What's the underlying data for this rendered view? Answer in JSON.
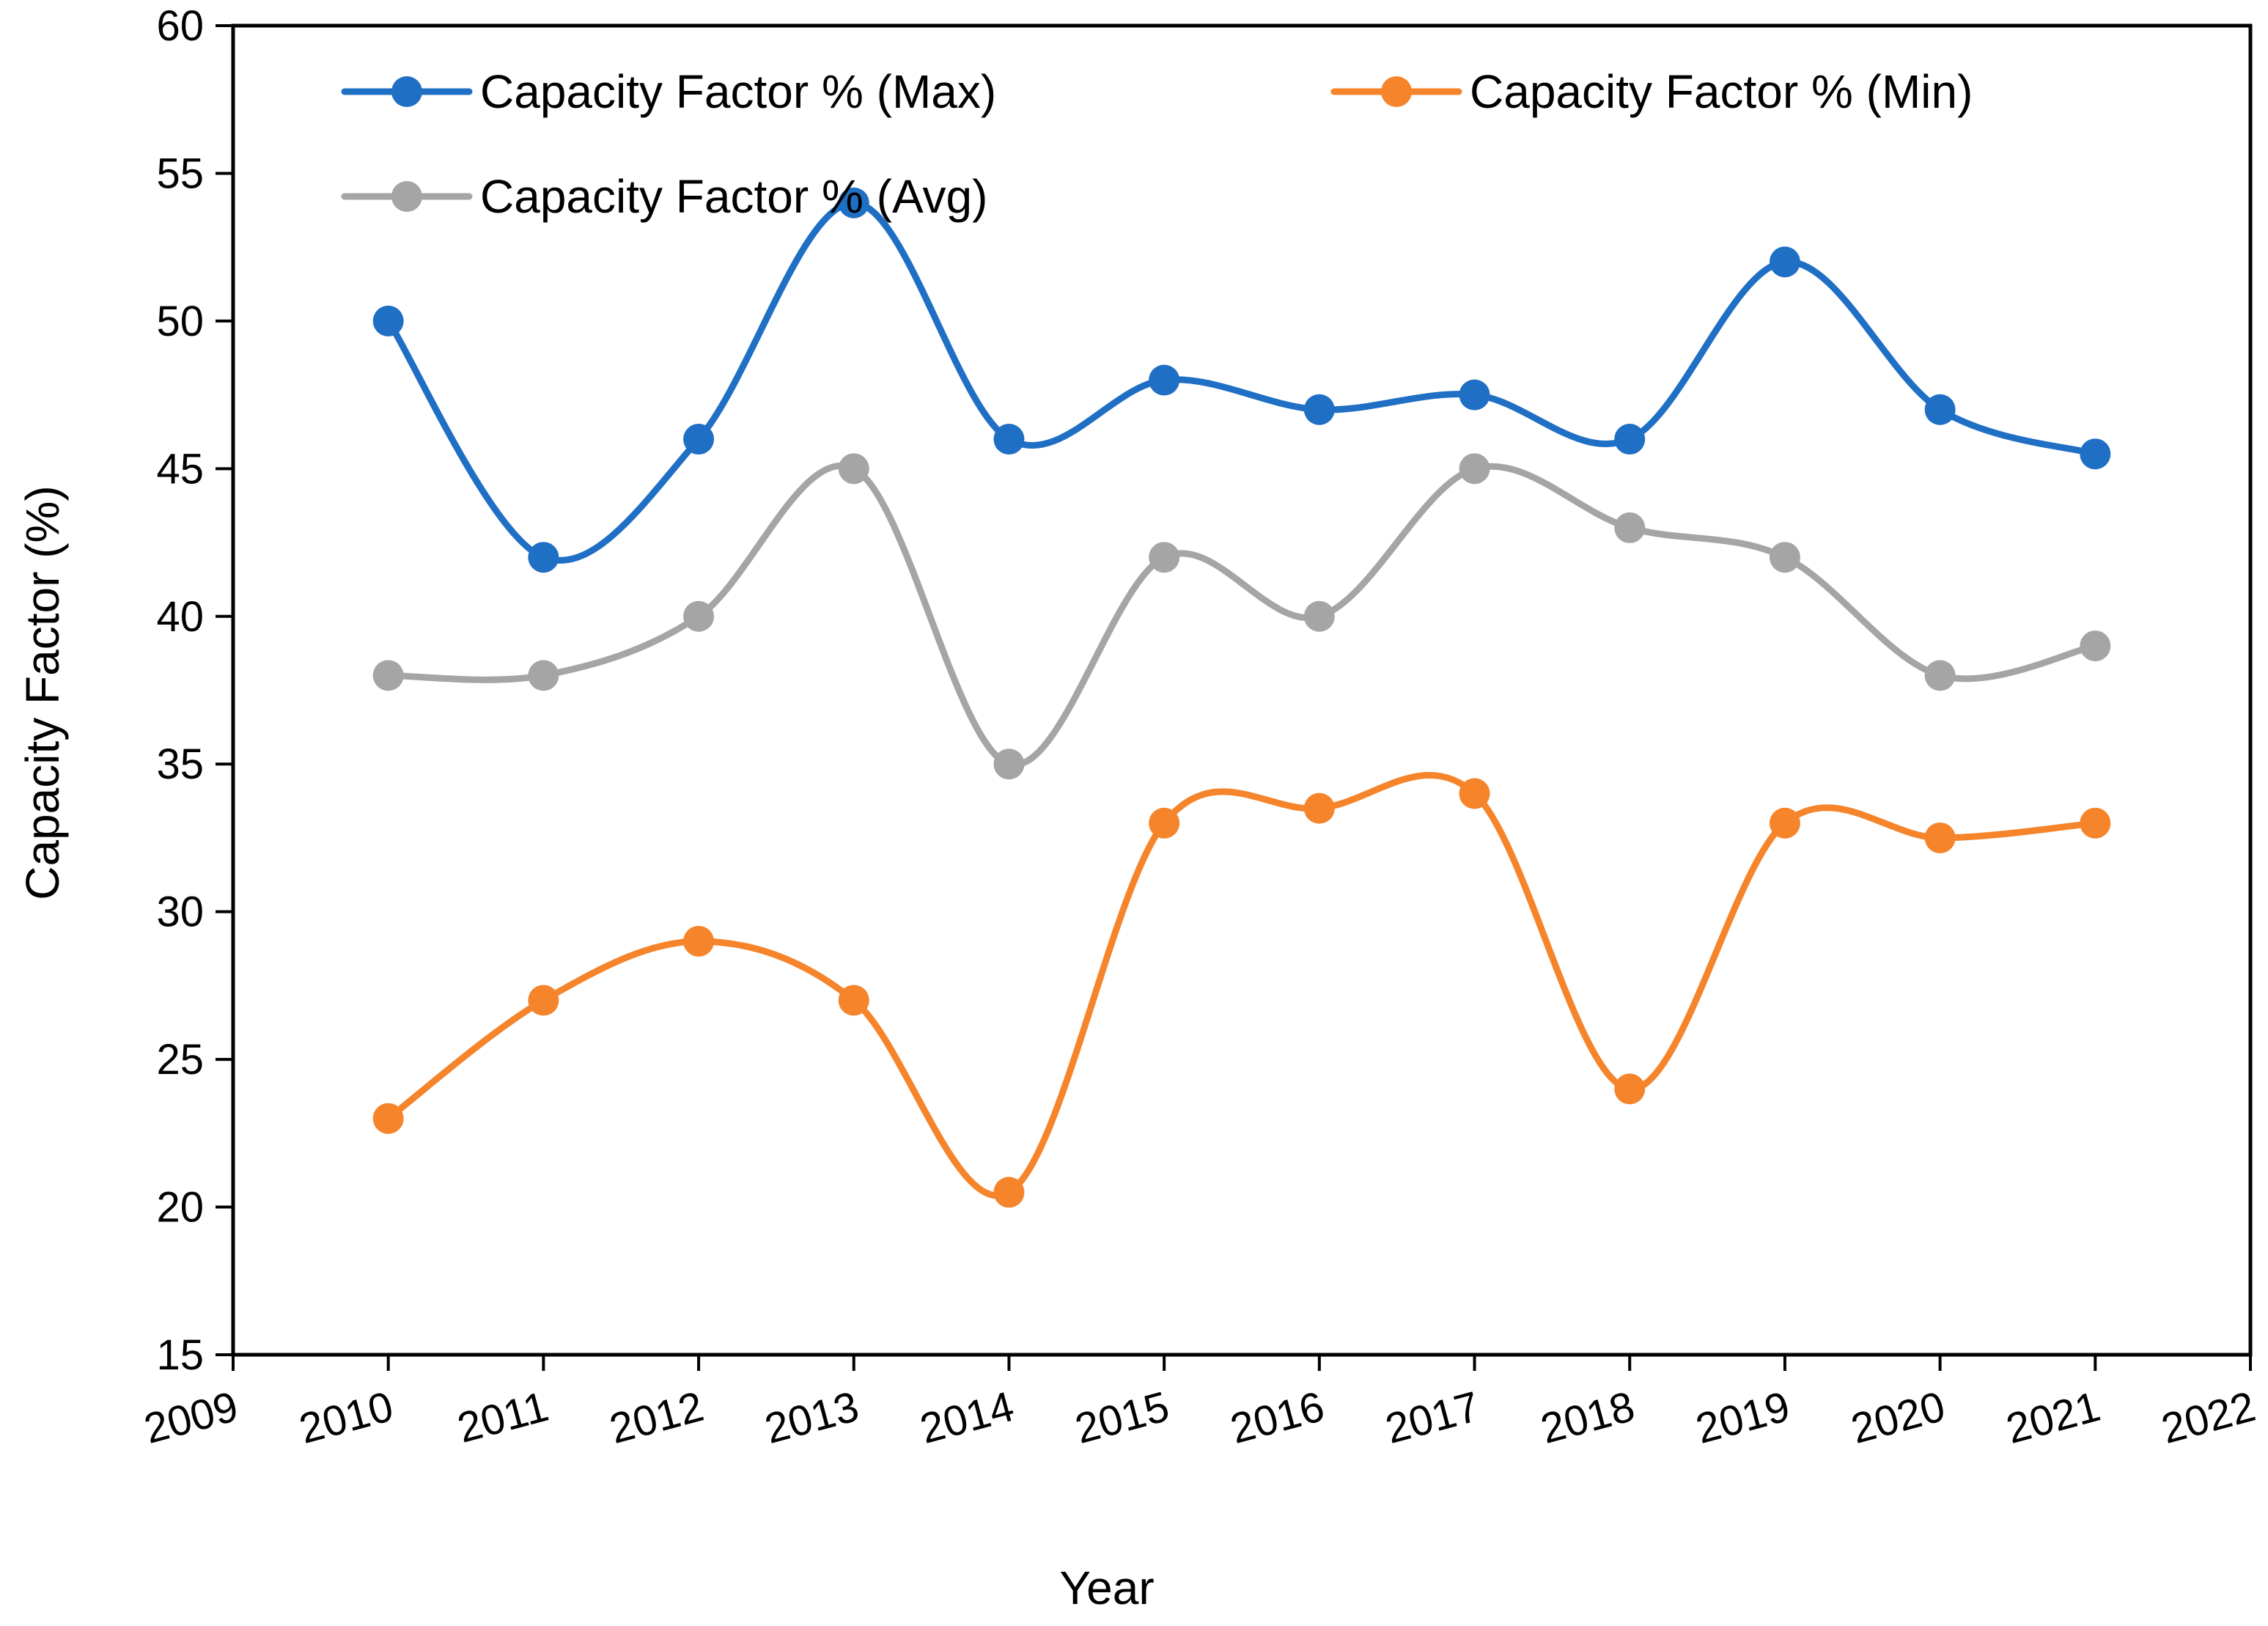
{
  "chart_data": {
    "type": "line",
    "smooth": true,
    "title": "",
    "xlabel": "Year",
    "ylabel": "Capacity Factor (%)",
    "xlim": [
      2009,
      2022
    ],
    "ylim": [
      15,
      60
    ],
    "x_ticks": [
      2009,
      2010,
      2011,
      2012,
      2013,
      2014,
      2015,
      2016,
      2017,
      2018,
      2019,
      2020,
      2021,
      2022
    ],
    "y_ticks": [
      15,
      20,
      25,
      30,
      35,
      40,
      45,
      50,
      55,
      60
    ],
    "grid": false,
    "legend_position": "top",
    "x": [
      2010,
      2011,
      2012,
      2013,
      2014,
      2015,
      2016,
      2017,
      2018,
      2019,
      2020,
      2021
    ],
    "series": [
      {
        "name": "Capacity Factor % (Max)",
        "color": "#1f6fc5",
        "values": [
          50,
          42,
          46,
          54,
          46,
          48,
          47,
          47.5,
          46,
          52,
          47,
          45.5
        ]
      },
      {
        "name": "Capacity Factor % (Min)",
        "color": "#f5842b",
        "values": [
          23,
          27,
          29,
          27,
          20.5,
          33,
          33.5,
          34,
          24,
          33,
          32.5,
          33
        ]
      },
      {
        "name": "Capacity Factor % (Avg)",
        "color": "#a5a5a5",
        "values": [
          38,
          38,
          40,
          45,
          35,
          42,
          40,
          45,
          43,
          42,
          38,
          39
        ]
      }
    ]
  }
}
